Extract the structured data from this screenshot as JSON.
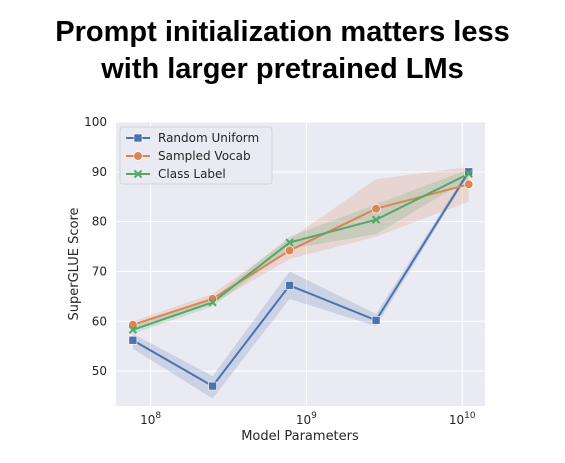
{
  "slide": {
    "title_line1": "Prompt initialization matters less",
    "title_line2": "with larger pretrained LMs"
  },
  "chart_data": {
    "type": "line",
    "xlabel": "Model Parameters",
    "ylabel": "SuperGLUE Score",
    "xscale": "log",
    "xlim": [
      60000000,
      14000000000
    ],
    "ylim": [
      43,
      100
    ],
    "yticks": [
      50,
      60,
      70,
      80,
      90,
      100
    ],
    "xticks": [
      {
        "value": 100000000,
        "base": "10",
        "exp": "8"
      },
      {
        "value": 1000000000,
        "base": "10",
        "exp": "9"
      },
      {
        "value": 10000000000,
        "base": "10",
        "exp": "10"
      }
    ],
    "grid": true,
    "legend_position": "top-left",
    "x": [
      77000000,
      250000000,
      780000000,
      2800000000,
      11000000000
    ],
    "series": [
      {
        "name": "Random Uniform",
        "color": "#4c72b0",
        "marker": "square",
        "values": [
          56.2,
          47.0,
          67.2,
          60.2,
          90.0
        ],
        "band_low": [
          54.5,
          44.5,
          64.5,
          59.0,
          89.5
        ],
        "band_high": [
          57.5,
          49.0,
          70.0,
          61.5,
          90.5
        ]
      },
      {
        "name": "Sampled Vocab",
        "color": "#dd8452",
        "marker": "circle",
        "values": [
          59.3,
          64.5,
          74.2,
          82.6,
          87.5
        ],
        "band_low": [
          58.5,
          63.5,
          72.5,
          77.0,
          84.0
        ],
        "band_high": [
          60.0,
          65.5,
          76.5,
          88.5,
          91.0
        ]
      },
      {
        "name": "Class Label",
        "color": "#55a868",
        "marker": "x",
        "values": [
          58.3,
          63.8,
          75.8,
          80.4,
          89.6
        ],
        "band_low": [
          57.5,
          63.0,
          74.5,
          77.5,
          88.5
        ],
        "band_high": [
          59.0,
          64.5,
          77.0,
          83.5,
          90.5
        ]
      }
    ]
  }
}
